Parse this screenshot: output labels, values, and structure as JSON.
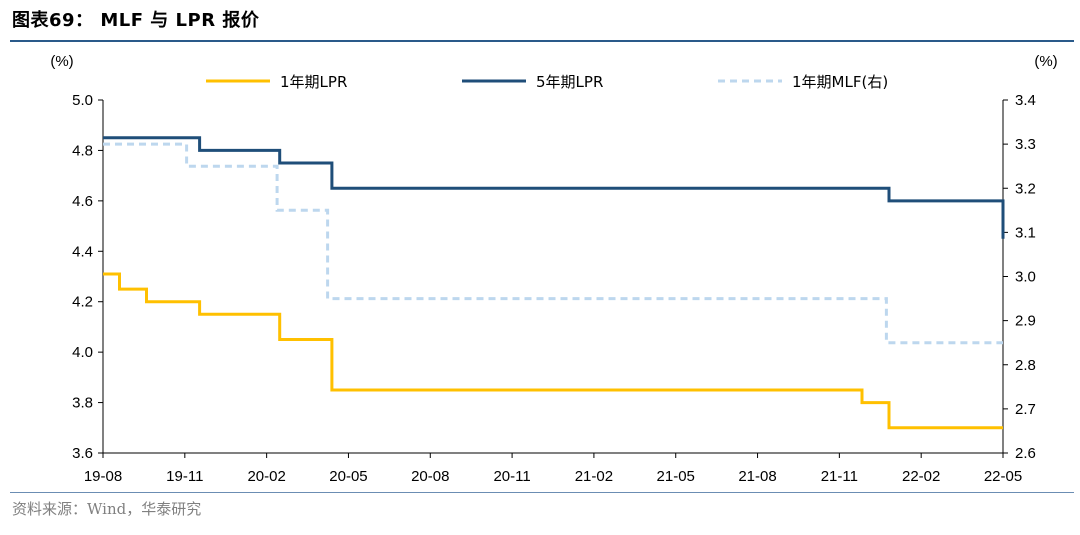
{
  "title": "图表69： MLF 与 LPR 报价",
  "source": "资料来源：Wind，华泰研究",
  "colors": {
    "lpr1y": "#FFC000",
    "lpr5y": "#1F4E79",
    "mlf1y": "#BDD7EE",
    "rule": "#2a5a8a"
  },
  "chart_data": {
    "type": "line",
    "x_labels": [
      "19-08",
      "19-11",
      "20-02",
      "20-05",
      "20-08",
      "20-11",
      "21-02",
      "21-05",
      "21-08",
      "21-11",
      "22-02",
      "22-05"
    ],
    "left_axis": {
      "unit": "(%)",
      "ylim": [
        3.6,
        5.0
      ],
      "ticks": [
        "3.6",
        "3.8",
        "4.0",
        "4.2",
        "4.4",
        "4.6",
        "4.8",
        "5.0"
      ]
    },
    "right_axis": {
      "unit": "(%)",
      "ylim": [
        2.6,
        3.4
      ],
      "ticks": [
        "2.6",
        "2.7",
        "2.8",
        "2.9",
        "3.0",
        "3.1",
        "3.2",
        "3.3",
        "3.4"
      ]
    },
    "x_range": [
      "2019-08-01",
      "2022-05-31"
    ],
    "series": [
      {
        "name": "1年期LPR",
        "axis": "left",
        "style": "solid",
        "color": "#FFC000",
        "points": [
          [
            "2019-08-01",
            4.31
          ],
          [
            "2019-08-20",
            4.25
          ],
          [
            "2019-09-20",
            4.2
          ],
          [
            "2019-11-20",
            4.15
          ],
          [
            "2020-02-20",
            4.05
          ],
          [
            "2020-04-20",
            3.85
          ],
          [
            "2021-12-20",
            3.8
          ],
          [
            "2022-01-20",
            3.7
          ],
          [
            "2022-05-31",
            3.7
          ]
        ]
      },
      {
        "name": "5年期LPR",
        "axis": "left",
        "style": "solid",
        "color": "#1F4E79",
        "points": [
          [
            "2019-08-01",
            4.85
          ],
          [
            "2019-11-20",
            4.8
          ],
          [
            "2020-02-20",
            4.75
          ],
          [
            "2020-04-20",
            4.65
          ],
          [
            "2022-01-20",
            4.6
          ],
          [
            "2022-05-20",
            4.6
          ],
          [
            "2022-05-31",
            4.45
          ]
        ]
      },
      {
        "name": "1年期MLF(右)",
        "axis": "right",
        "style": "dashed",
        "color": "#BDD7EE",
        "points": [
          [
            "2019-08-01",
            3.3
          ],
          [
            "2019-11-05",
            3.25
          ],
          [
            "2020-02-17",
            3.15
          ],
          [
            "2020-04-15",
            2.95
          ],
          [
            "2022-01-17",
            2.85
          ],
          [
            "2022-05-31",
            2.85
          ]
        ]
      }
    ]
  }
}
